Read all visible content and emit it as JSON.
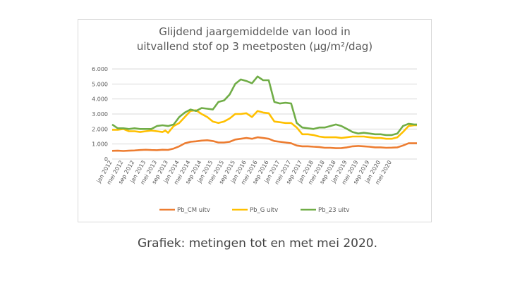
{
  "caption": "Grafiek: metingen tot en met mei 2020.",
  "chart_data": {
    "type": "line",
    "title_line1": "Glijdend jaargemiddelde van lood in",
    "title_line2": "uitvallend stof op 3 meetposten (µg/m²/dag)",
    "ylim": [
      0,
      6000
    ],
    "yticks": [
      "0",
      "1.000",
      "2.000",
      "3.000",
      "4.000",
      "5.000",
      "6.000"
    ],
    "ytick_values": [
      0,
      1000,
      2000,
      3000,
      4000,
      5000,
      6000
    ],
    "grid": true,
    "legend_position": "bottom",
    "x_tick_labels": [
      "jan 2012",
      "mei 2012",
      "sep 2012",
      "jan 2013",
      "mei 2013",
      "sep 2013",
      "jan 2014",
      "mei 2014",
      "sep 2014",
      "jan 2015",
      "mei 2015",
      "sep 2015",
      "jan 2016",
      "mei 2016",
      "sep 2016",
      "jan 2017",
      "mei 2017",
      "sep 2017",
      "jan 2018",
      "mei 2018",
      "sep 2018",
      "jan 2019",
      "mei 2019",
      "sep 2019",
      "jan 2020",
      "mei 2020"
    ],
    "series": [
      {
        "name": "Pb_CM uitv",
        "color": "#ed7d31",
        "points": [
          [
            0,
            550
          ],
          [
            2,
            560
          ],
          [
            4,
            540
          ],
          [
            6,
            560
          ],
          [
            8,
            570
          ],
          [
            10,
            600
          ],
          [
            12,
            620
          ],
          [
            14,
            600
          ],
          [
            16,
            590
          ],
          [
            18,
            620
          ],
          [
            20,
            610
          ],
          [
            22,
            700
          ],
          [
            24,
            850
          ],
          [
            26,
            1050
          ],
          [
            28,
            1150
          ],
          [
            30,
            1180
          ],
          [
            32,
            1230
          ],
          [
            34,
            1250
          ],
          [
            36,
            1200
          ],
          [
            38,
            1100
          ],
          [
            40,
            1100
          ],
          [
            42,
            1150
          ],
          [
            44,
            1300
          ],
          [
            46,
            1350
          ],
          [
            48,
            1400
          ],
          [
            50,
            1350
          ],
          [
            52,
            1450
          ],
          [
            54,
            1400
          ],
          [
            56,
            1350
          ],
          [
            58,
            1200
          ],
          [
            60,
            1150
          ],
          [
            62,
            1100
          ],
          [
            64,
            1050
          ],
          [
            66,
            900
          ],
          [
            68,
            850
          ],
          [
            70,
            850
          ],
          [
            72,
            820
          ],
          [
            74,
            800
          ],
          [
            76,
            750
          ],
          [
            78,
            750
          ],
          [
            80,
            720
          ],
          [
            82,
            730
          ],
          [
            84,
            780
          ],
          [
            86,
            850
          ],
          [
            88,
            870
          ],
          [
            90,
            850
          ],
          [
            92,
            820
          ],
          [
            94,
            780
          ],
          [
            96,
            780
          ],
          [
            98,
            750
          ],
          [
            100,
            760
          ],
          [
            102,
            780
          ],
          [
            104,
            900
          ],
          [
            106,
            1050
          ],
          [
            108,
            1050
          ],
          [
            109,
            1050
          ]
        ]
      },
      {
        "name": "Pb_G uitv",
        "color": "#ffc000",
        "points": [
          [
            0,
            1950
          ],
          [
            2,
            1950
          ],
          [
            4,
            2000
          ],
          [
            6,
            1850
          ],
          [
            8,
            1850
          ],
          [
            10,
            1800
          ],
          [
            12,
            1850
          ],
          [
            14,
            1900
          ],
          [
            16,
            1850
          ],
          [
            18,
            1800
          ],
          [
            19,
            1900
          ],
          [
            20,
            1750
          ],
          [
            22,
            2200
          ],
          [
            24,
            2400
          ],
          [
            26,
            2800
          ],
          [
            28,
            3200
          ],
          [
            30,
            3250
          ],
          [
            32,
            3000
          ],
          [
            34,
            2800
          ],
          [
            36,
            2500
          ],
          [
            38,
            2400
          ],
          [
            40,
            2500
          ],
          [
            42,
            2700
          ],
          [
            44,
            3000
          ],
          [
            46,
            3000
          ],
          [
            48,
            3050
          ],
          [
            50,
            2800
          ],
          [
            52,
            3200
          ],
          [
            54,
            3100
          ],
          [
            56,
            3050
          ],
          [
            58,
            2500
          ],
          [
            60,
            2450
          ],
          [
            62,
            2400
          ],
          [
            64,
            2400
          ],
          [
            66,
            2100
          ],
          [
            68,
            1650
          ],
          [
            70,
            1650
          ],
          [
            72,
            1600
          ],
          [
            74,
            1500
          ],
          [
            76,
            1450
          ],
          [
            78,
            1450
          ],
          [
            80,
            1450
          ],
          [
            82,
            1400
          ],
          [
            84,
            1450
          ],
          [
            86,
            1500
          ],
          [
            88,
            1500
          ],
          [
            90,
            1500
          ],
          [
            92,
            1450
          ],
          [
            94,
            1400
          ],
          [
            96,
            1400
          ],
          [
            98,
            1350
          ],
          [
            100,
            1350
          ],
          [
            102,
            1450
          ],
          [
            104,
            1800
          ],
          [
            106,
            2200
          ],
          [
            108,
            2250
          ],
          [
            109,
            2250
          ]
        ]
      },
      {
        "name": "Pb_23 uitv",
        "color": "#70ad47",
        "points": [
          [
            0,
            2300
          ],
          [
            2,
            2050
          ],
          [
            4,
            2050
          ],
          [
            6,
            2000
          ],
          [
            8,
            2050
          ],
          [
            10,
            2000
          ],
          [
            12,
            2000
          ],
          [
            14,
            2000
          ],
          [
            16,
            2200
          ],
          [
            18,
            2250
          ],
          [
            20,
            2200
          ],
          [
            22,
            2300
          ],
          [
            24,
            2800
          ],
          [
            26,
            3100
          ],
          [
            28,
            3300
          ],
          [
            30,
            3200
          ],
          [
            32,
            3400
          ],
          [
            34,
            3350
          ],
          [
            36,
            3300
          ],
          [
            38,
            3800
          ],
          [
            40,
            3900
          ],
          [
            42,
            4300
          ],
          [
            44,
            5000
          ],
          [
            46,
            5300
          ],
          [
            48,
            5200
          ],
          [
            50,
            5050
          ],
          [
            52,
            5500
          ],
          [
            54,
            5250
          ],
          [
            56,
            5250
          ],
          [
            58,
            3800
          ],
          [
            60,
            3700
          ],
          [
            62,
            3750
          ],
          [
            64,
            3700
          ],
          [
            66,
            2400
          ],
          [
            68,
            2100
          ],
          [
            70,
            2050
          ],
          [
            72,
            2000
          ],
          [
            74,
            2100
          ],
          [
            76,
            2100
          ],
          [
            78,
            2200
          ],
          [
            80,
            2300
          ],
          [
            82,
            2200
          ],
          [
            84,
            2000
          ],
          [
            86,
            1800
          ],
          [
            88,
            1700
          ],
          [
            90,
            1750
          ],
          [
            92,
            1700
          ],
          [
            94,
            1650
          ],
          [
            96,
            1650
          ],
          [
            98,
            1600
          ],
          [
            100,
            1600
          ],
          [
            102,
            1700
          ],
          [
            104,
            2200
          ],
          [
            106,
            2350
          ],
          [
            108,
            2300
          ],
          [
            109,
            2300
          ]
        ]
      }
    ]
  }
}
